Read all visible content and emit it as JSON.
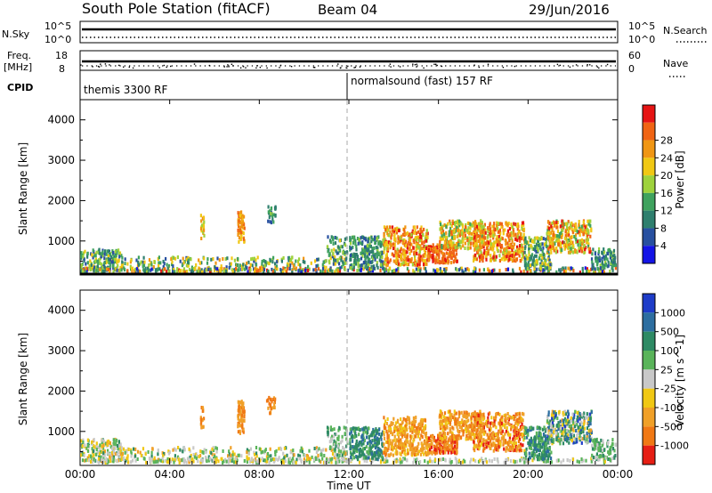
{
  "header": {
    "title": "South Pole Station (fitACF)",
    "beam": "Beam 04",
    "date": "29/Jun/2016"
  },
  "noise_panel": {
    "left_label": "N.Sky",
    "right_label": "N.Search",
    "left_ticks": [
      "10^5",
      "10^0"
    ],
    "right_ticks": [
      "10^5",
      "10^0"
    ]
  },
  "freq_panel": {
    "left_label_1": "Freq.",
    "left_label_2": "[MHz]",
    "right_label": "Nave",
    "left_ticks": [
      "18",
      "8"
    ],
    "right_ticks": [
      "60",
      "0"
    ]
  },
  "cpid_panel": {
    "label": "CPID",
    "segments": [
      {
        "start_hour": 0,
        "name": "themis 3300 RF"
      },
      {
        "start_hour": 12,
        "name": "normalsound (fast) 157 RF"
      }
    ]
  },
  "chart_data": [
    {
      "type": "heatmap",
      "name": "power",
      "ylabel": "Slant Range [km]",
      "ylim": [
        180,
        4500
      ],
      "yticks": [
        "1000",
        "2000",
        "3000",
        "4000"
      ],
      "ytick_values": [
        1000,
        2000,
        3000,
        4000
      ],
      "colorbar_label": "Power [dB]",
      "colorbar_ticks": [
        "4",
        "8",
        "12",
        "16",
        "20",
        "24",
        "28"
      ],
      "colors": [
        "#1414e6",
        "#2850a0",
        "#2f7f6e",
        "#3fa25e",
        "#9ed23c",
        "#f0c814",
        "#f09614",
        "#f06414",
        "#e61414"
      ]
    },
    {
      "type": "heatmap",
      "name": "velocity",
      "ylabel": "Slant Range [km]",
      "xlabel": "Time UT",
      "ylim": [
        180,
        4500
      ],
      "xlim": [
        0,
        24
      ],
      "yticks": [
        "1000",
        "2000",
        "3000",
        "4000"
      ],
      "ytick_values": [
        1000,
        2000,
        3000,
        4000
      ],
      "xticks": [
        "00:00",
        "04:00",
        "08:00",
        "12:00",
        "16:00",
        "20:00",
        "00:00"
      ],
      "xtick_values": [
        0,
        4,
        8,
        12,
        16,
        20,
        24
      ],
      "colorbar_label": "Velocity [m s^-1]",
      "colorbar_ticks": [
        "1000",
        "500",
        "100",
        "25",
        "-25",
        "-100",
        "-500",
        "-1000"
      ],
      "colors": [
        "#1e3cc8",
        "#2d6ea0",
        "#2e8a64",
        "#5ab45a",
        "#c8c8c8",
        "#f0c814",
        "#f0a028",
        "#f07814",
        "#e61e14"
      ]
    }
  ],
  "scatter_blobs": [
    {
      "t0": 0.0,
      "t1": 1.8,
      "r0": 250,
      "r1": 800,
      "n": 160,
      "p": [
        1,
        5
      ],
      "v": [
        2,
        6
      ]
    },
    {
      "t0": 1.8,
      "t1": 11.9,
      "r0": 230,
      "r1": 600,
      "n": 300,
      "p": [
        1,
        6
      ],
      "v": [
        2,
        6
      ]
    },
    {
      "t0": 0.0,
      "t1": 23.9,
      "r0": 200,
      "r1": 330,
      "n": 420,
      "p": [
        0,
        8
      ],
      "v": [
        3,
        5
      ]
    },
    {
      "t0": 5.35,
      "t1": 5.5,
      "r0": 1050,
      "r1": 1650,
      "n": 20,
      "p": [
        4,
        7
      ],
      "v": [
        6,
        7
      ]
    },
    {
      "t0": 7.0,
      "t1": 7.3,
      "r0": 950,
      "r1": 1750,
      "n": 60,
      "p": [
        5,
        7
      ],
      "v": [
        6,
        7
      ]
    },
    {
      "t0": 8.3,
      "t1": 8.7,
      "r0": 1450,
      "r1": 1850,
      "n": 25,
      "p": [
        1,
        4
      ],
      "v": [
        6,
        7
      ]
    },
    {
      "t0": 11.0,
      "t1": 11.9,
      "r0": 400,
      "r1": 1100,
      "n": 60,
      "p": [
        1,
        5
      ],
      "v": [
        2,
        4
      ]
    },
    {
      "t0": 12.0,
      "t1": 13.5,
      "r0": 300,
      "r1": 1100,
      "n": 220,
      "p": [
        1,
        4
      ],
      "v": [
        1,
        3
      ]
    },
    {
      "t0": 13.5,
      "t1": 15.5,
      "r0": 400,
      "r1": 1350,
      "n": 340,
      "p": [
        4,
        8
      ],
      "v": [
        5,
        7
      ]
    },
    {
      "t0": 15.5,
      "t1": 16.8,
      "r0": 450,
      "r1": 900,
      "n": 160,
      "p": [
        6,
        8
      ],
      "v": [
        6,
        8
      ]
    },
    {
      "t0": 16.0,
      "t1": 18.0,
      "r0": 800,
      "r1": 1500,
      "n": 260,
      "p": [
        3,
        7
      ],
      "v": [
        5,
        7
      ]
    },
    {
      "t0": 17.5,
      "t1": 19.8,
      "r0": 500,
      "r1": 1450,
      "n": 380,
      "p": [
        4,
        8
      ],
      "v": [
        5,
        8
      ]
    },
    {
      "t0": 19.8,
      "t1": 21.0,
      "r0": 300,
      "r1": 1100,
      "n": 180,
      "p": [
        1,
        5
      ],
      "v": [
        1,
        3
      ]
    },
    {
      "t0": 20.8,
      "t1": 22.8,
      "r0": 700,
      "r1": 1500,
      "n": 300,
      "p": [
        3,
        8
      ],
      "v": [
        0,
        6
      ]
    },
    {
      "t0": 22.8,
      "t1": 23.9,
      "r0": 300,
      "r1": 800,
      "n": 90,
      "p": [
        1,
        4
      ],
      "v": [
        2,
        4
      ]
    }
  ]
}
